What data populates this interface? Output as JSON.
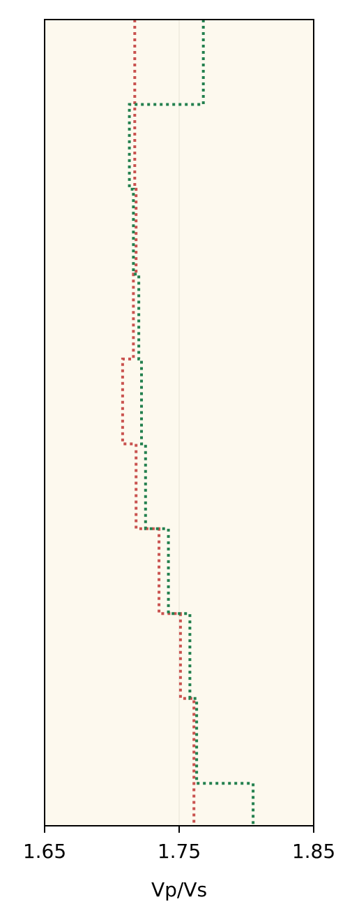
{
  "chart_data": {
    "type": "line",
    "title": "",
    "xlabel": "Vp/Vs",
    "ylabel": "",
    "xlim": [
      1.65,
      1.85
    ],
    "x_ticks": [
      1.65,
      1.75,
      1.85
    ],
    "x_tick_labels": [
      "1.65",
      "1.75",
      "1.85"
    ],
    "ylim": [
      0,
      9.5
    ],
    "y_inverted": true,
    "y_ticks_visible": false,
    "grid": false,
    "vertical_reference": 1.75,
    "background_color": "#fdf9ee",
    "layer_boundaries": [
      0,
      1,
      2,
      3,
      4,
      5,
      6,
      7,
      8,
      9,
      9.5
    ],
    "series": [
      {
        "color": "#c9524f",
        "line_style": "dotted",
        "values": [
          1.717,
          1.717,
          1.718,
          1.716,
          1.708,
          1.718,
          1.735,
          1.751,
          1.761,
          1.761
        ]
      },
      {
        "color": "#23804e",
        "line_style": "dotted",
        "values": [
          1.768,
          1.713,
          1.716,
          1.72,
          1.722,
          1.725,
          1.742,
          1.758,
          1.763,
          1.805
        ]
      }
    ]
  }
}
